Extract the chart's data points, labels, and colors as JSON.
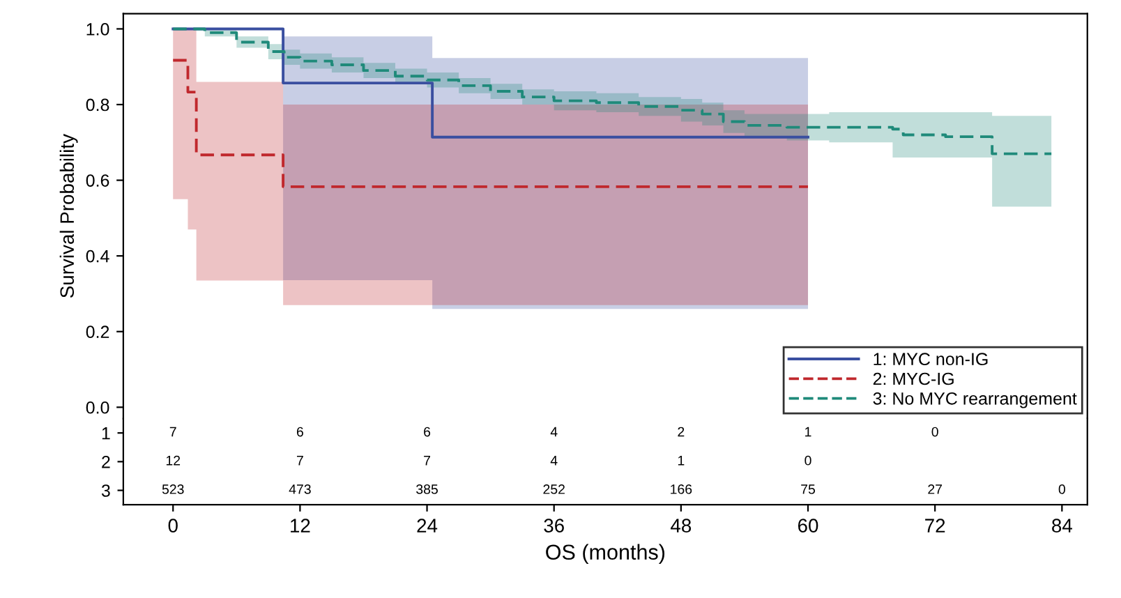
{
  "chart_data": [
    {
      "type": "step",
      "ylabel": "Survival Probability",
      "xlim": [
        -4.7,
        86.4
      ],
      "ylim": [
        -0.03,
        1.04
      ],
      "xticks": [
        0,
        12,
        24,
        36,
        48,
        60,
        72,
        84
      ],
      "yticks": [
        {
          "value": 0,
          "label": "0.0"
        },
        {
          "value": 0.2,
          "label": "0.2"
        },
        {
          "value": 0.4,
          "label": "0.4"
        },
        {
          "value": 0.6,
          "label": "0.6"
        },
        {
          "value": 0.8,
          "label": "0.8"
        },
        {
          "value": 1.0,
          "label": "1.0"
        }
      ],
      "tick_labels": "y",
      "legend": "bottom right",
      "series": [
        {
          "name": "1: MYC non-IG",
          "color": "#3a4fa0",
          "line_style": "solid",
          "x": [
            0,
            10.4,
            24.5,
            60
          ],
          "values": [
            1.0,
            0.857,
            0.714,
            0.714
          ],
          "lower": [
            1.0,
            0.336,
            0.26,
            0.26
          ],
          "upper": [
            1.0,
            0.98,
            0.923,
            0.923
          ]
        },
        {
          "name": "2: MYC-IG",
          "color": "#c0282d",
          "line_style": "dashed",
          "x": [
            0,
            1.4,
            2.2,
            10.4,
            60
          ],
          "values": [
            0.917,
            0.833,
            0.667,
            0.583,
            0.583
          ],
          "lower": [
            0.55,
            0.47,
            0.335,
            0.27,
            0.27
          ],
          "upper": [
            1.0,
            1.0,
            0.86,
            0.8,
            0.8
          ]
        },
        {
          "name": "3: No MYC rearrangement",
          "color": "#1f8a7a",
          "line_style": "dashed",
          "x": [
            0,
            3,
            6,
            9,
            10.5,
            12,
            15,
            18,
            21,
            24,
            27,
            30,
            33,
            36,
            40,
            44,
            48,
            50,
            52,
            54,
            58,
            62,
            66,
            68,
            69,
            73,
            77.4,
            83
          ],
          "values": [
            1.0,
            0.99,
            0.965,
            0.94,
            0.925,
            0.915,
            0.905,
            0.89,
            0.875,
            0.865,
            0.85,
            0.835,
            0.82,
            0.81,
            0.805,
            0.795,
            0.785,
            0.775,
            0.755,
            0.745,
            0.74,
            0.74,
            0.74,
            0.735,
            0.72,
            0.715,
            0.67,
            0.67
          ],
          "lower": [
            1.0,
            0.98,
            0.95,
            0.92,
            0.905,
            0.895,
            0.885,
            0.87,
            0.855,
            0.845,
            0.83,
            0.815,
            0.8,
            0.785,
            0.78,
            0.77,
            0.755,
            0.745,
            0.725,
            0.715,
            0.705,
            0.7,
            0.7,
            0.66,
            0.66,
            0.66,
            0.53,
            0.53
          ],
          "upper": [
            1.0,
            1.0,
            0.98,
            0.96,
            0.945,
            0.935,
            0.925,
            0.91,
            0.895,
            0.885,
            0.87,
            0.855,
            0.84,
            0.835,
            0.83,
            0.82,
            0.815,
            0.805,
            0.785,
            0.775,
            0.775,
            0.78,
            0.78,
            0.78,
            0.78,
            0.78,
            0.77,
            0.77
          ]
        }
      ]
    },
    {
      "type": "heatmap",
      "xlabel": "OS (months)",
      "categories": [
        "0",
        "12",
        "24",
        "36",
        "48",
        "60",
        "72",
        "84"
      ],
      "y_categories": [
        "1",
        "2",
        "3"
      ],
      "data_labels": true,
      "cells": [
        [
          7,
          6,
          6,
          4,
          2,
          1,
          0,
          null
        ],
        [
          12,
          7,
          7,
          4,
          1,
          0,
          null,
          null
        ],
        [
          523,
          473,
          385,
          252,
          166,
          75,
          27,
          0
        ]
      ]
    }
  ]
}
